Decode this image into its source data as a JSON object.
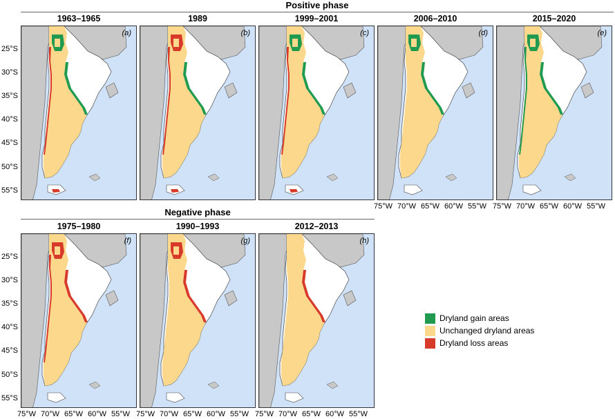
{
  "colors": {
    "ocean": "#cfe2f7",
    "neighbor": "#c8c8c8",
    "humid": "#ffffff",
    "unchanged": "#fbd88c",
    "gain": "#1f9a4f",
    "loss": "#d83a2a"
  },
  "phases": {
    "positive": "Positive phase",
    "negative": "Negative phase"
  },
  "panels": [
    {
      "title": "1963–1965",
      "letter": "(a)",
      "phase": "positive"
    },
    {
      "title": "1989",
      "letter": "(b)",
      "phase": "positive"
    },
    {
      "title": "1999–2001",
      "letter": "(c)",
      "phase": "positive"
    },
    {
      "title": "2006–2010",
      "letter": "(d)",
      "phase": "positive"
    },
    {
      "title": "2015–2020",
      "letter": "(e)",
      "phase": "positive"
    },
    {
      "title": "1975–1980",
      "letter": "(f)",
      "phase": "negative"
    },
    {
      "title": "1990–1993",
      "letter": "(g)",
      "phase": "negative"
    },
    {
      "title": "2012–2013",
      "letter": "(h)",
      "phase": "negative"
    }
  ],
  "lat_ticks": [
    "25°S",
    "30°S",
    "35°S",
    "40°S",
    "45°S",
    "50°S",
    "55°S"
  ],
  "lon_ticks": [
    "75°W",
    "70°W",
    "65°W",
    "60°W",
    "55°W"
  ],
  "legend": [
    {
      "label": "Dryland gain areas",
      "color": "#1f9a4f"
    },
    {
      "label": "Unchanged dryland areas",
      "color": "#fbd88c"
    },
    {
      "label": "Dryland loss areas",
      "color": "#d83a2a"
    }
  ]
}
